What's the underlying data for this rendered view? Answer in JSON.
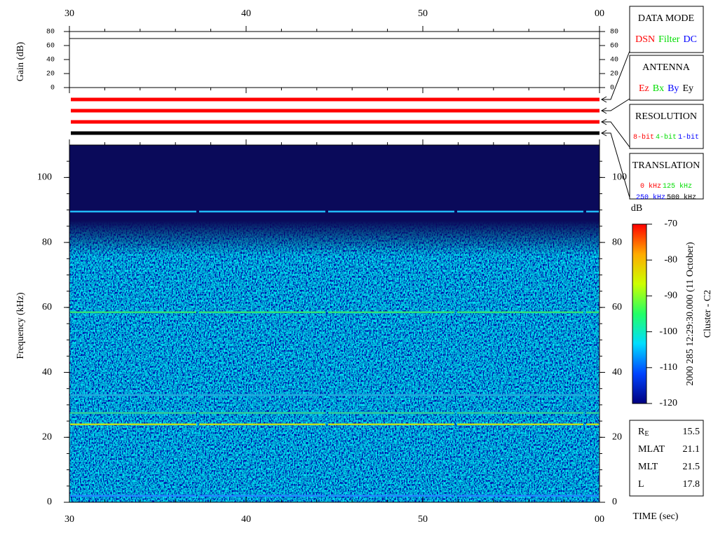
{
  "time_axis": {
    "xlim": [
      30,
      60
    ],
    "xticks": [
      30,
      40,
      50,
      {
        "value": 60,
        "label": "00"
      }
    ],
    "x_label": "TIME (sec)"
  },
  "gain_panel": {
    "type": "line",
    "y_label": "Gain (dB)",
    "ylim": [
      0,
      80
    ],
    "yticks": [
      0,
      20,
      40,
      60,
      80
    ],
    "x": [
      30,
      60
    ],
    "values": [
      70,
      70
    ],
    "color": "#000000"
  },
  "mode_bars": {
    "type": "bar",
    "tracks": [
      {
        "color": "#ff0000",
        "start": 30,
        "end": 60
      },
      {
        "color": "#ff0000",
        "start": 30,
        "end": 60
      },
      {
        "color": "#ff0000",
        "start": 30,
        "end": 60
      },
      {
        "color": "#000000",
        "start": 30,
        "end": 60
      }
    ]
  },
  "spectrogram": {
    "type": "spectrogram",
    "y_label": "Frequency (kHz)",
    "ylim": [
      0,
      110
    ],
    "yticks": [
      0,
      20,
      40,
      60,
      80,
      100
    ],
    "lines": [
      {
        "frequency": 89.5,
        "color": "#22bbff"
      },
      {
        "frequency": 58.5,
        "color": "#33dd77"
      },
      {
        "frequency": 33,
        "color": "#22aadd"
      },
      {
        "frequency": 27.5,
        "color": "#33cc99"
      },
      {
        "frequency": 24,
        "color": "#bbdd22"
      },
      {
        "frequency": 2,
        "color": "#2288ff"
      }
    ]
  },
  "colorbar": {
    "label": "dB",
    "ylim": [
      -120,
      -70
    ],
    "yticks": [
      -120,
      -110,
      -100,
      -90,
      -80,
      -70
    ],
    "colors": [
      "#000080",
      "#0044ff",
      "#00ddff",
      "#22ff66",
      "#ccff00",
      "#ffaa00",
      "#ff0000"
    ]
  },
  "legends": [
    {
      "title": "DATA MODE",
      "rows": [
        [
          {
            "text": "DSN",
            "color": "#ff0000"
          },
          {
            "text": "Filter",
            "color": "#00dd00"
          },
          {
            "text": "DC",
            "color": "#0000ff"
          }
        ]
      ]
    },
    {
      "title": "ANTENNA",
      "rows": [
        [
          {
            "text": "Ez",
            "color": "#ff0000"
          },
          {
            "text": "Bx",
            "color": "#00dd00"
          },
          {
            "text": "By",
            "color": "#0000ff"
          },
          {
            "text": "Ey",
            "color": "#000000"
          }
        ]
      ]
    },
    {
      "title": "RESOLUTION",
      "rows": [
        [
          {
            "text": "8-bit",
            "color": "#ff0000"
          },
          {
            "text": "4-bit",
            "color": "#00dd00"
          },
          {
            "text": "1-bit",
            "color": "#0000ff"
          }
        ]
      ]
    },
    {
      "title": "TRANSLATION",
      "rows": [
        [
          {
            "text": "0 kHz",
            "color": "#ff0000"
          },
          {
            "text": "125 kHz",
            "color": "#00dd00"
          }
        ],
        [
          {
            "text": "250 kHz",
            "color": "#0000ff"
          },
          {
            "text": "500 kHz",
            "color": "#000000"
          }
        ]
      ]
    }
  ],
  "info": [
    {
      "label": "R",
      "sub": "E",
      "value": 15.5
    },
    {
      "label": "MLAT",
      "value": 21.1
    },
    {
      "label": "MLT",
      "value": 21.5
    },
    {
      "label": "L",
      "value": 17.8
    }
  ],
  "side_text": [
    "2000 285 12:29:30.000 (11 October)",
    "Cluster - C2"
  ]
}
